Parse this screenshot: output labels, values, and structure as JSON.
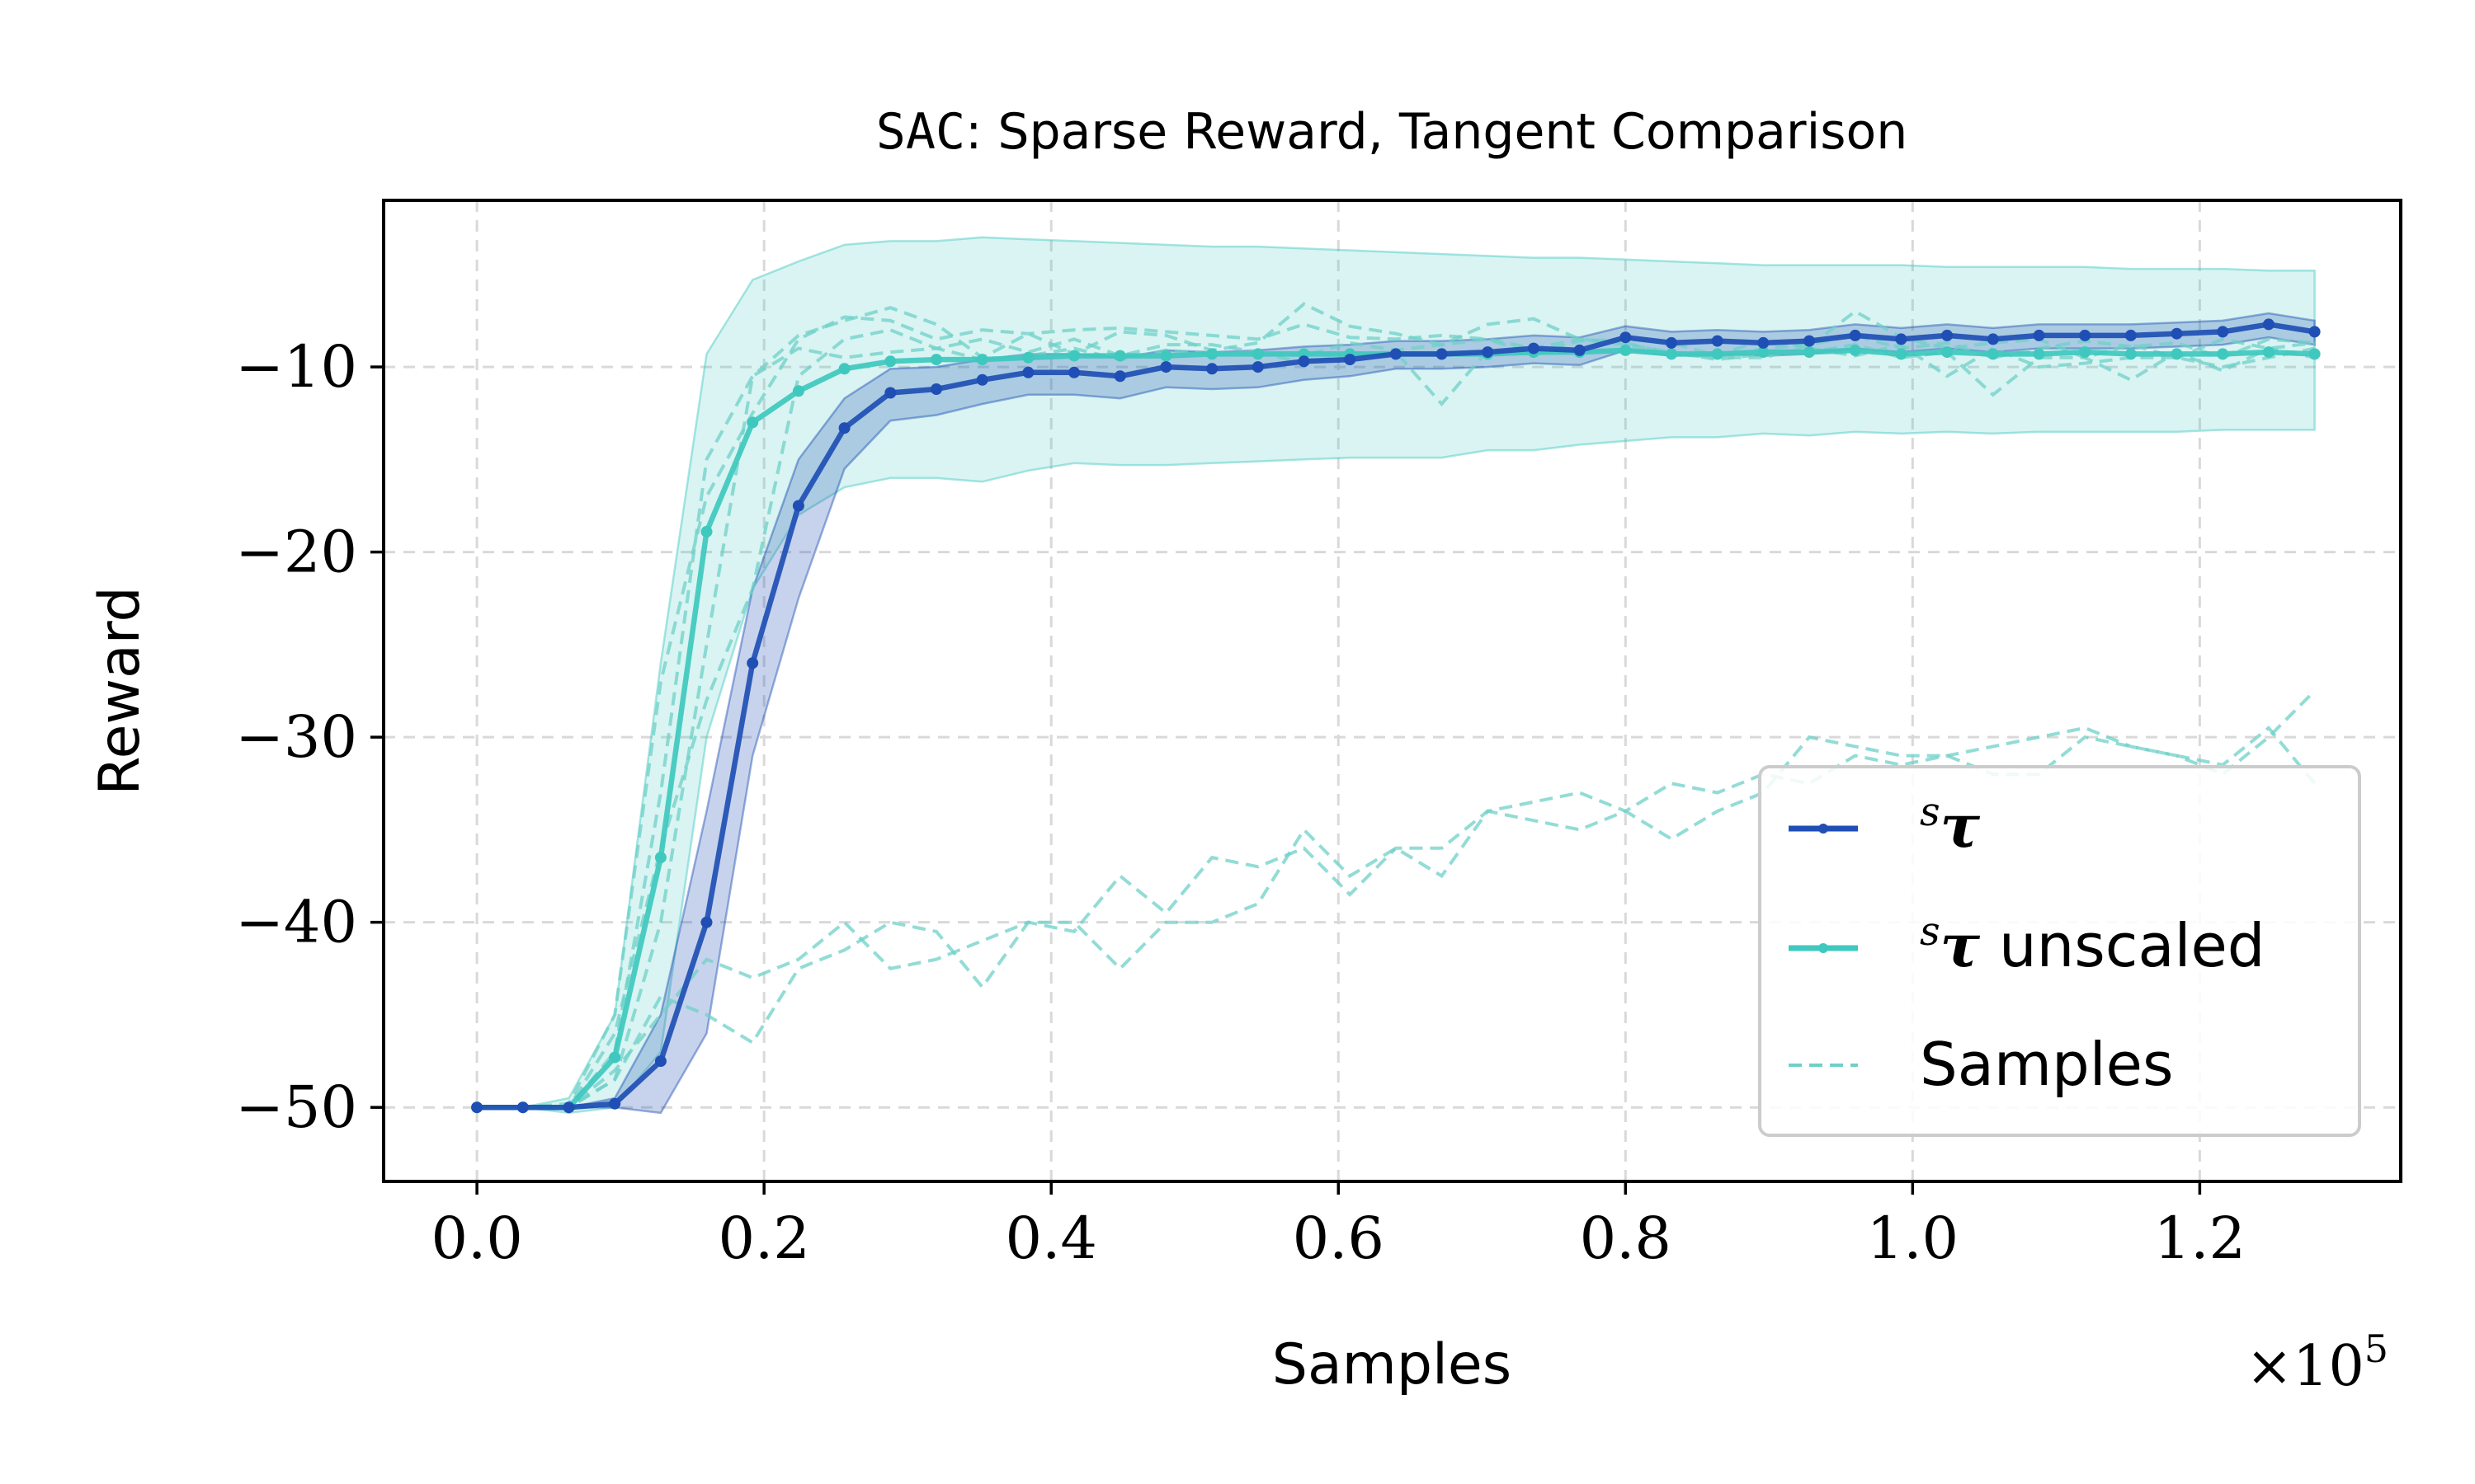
{
  "chart_data": {
    "type": "line",
    "title_prefix": "SAC",
    "title_rest": ": Sparse Reward, Tangent Comparison",
    "xlabel": "Samples",
    "ylabel": "Reward",
    "x_multiplier": "×10",
    "x_multiplier_exp": "5",
    "xlim": [
      -0.065,
      1.34
    ],
    "ylim": [
      -54,
      -1
    ],
    "xticks": [
      0.0,
      0.2,
      0.4,
      0.6,
      0.8,
      1.0,
      1.2
    ],
    "xtick_labels": [
      "0.0",
      "0.2",
      "0.4",
      "0.6",
      "0.8",
      "1.0",
      "1.2"
    ],
    "yticks": [
      -10,
      -20,
      -30,
      -40,
      -50
    ],
    "ytick_labels": [
      "−10",
      "−20",
      "−30",
      "−40",
      "−50"
    ],
    "grid": true,
    "legend_placement": "lower-right",
    "colors": {
      "scaled": "#1f4fb4",
      "unscaled": "#3fc8be",
      "samples": "#6fd0c8"
    },
    "x": [
      0.0,
      0.032,
      0.064,
      0.096,
      0.128,
      0.16,
      0.192,
      0.224,
      0.256,
      0.288,
      0.32,
      0.352,
      0.384,
      0.416,
      0.448,
      0.48,
      0.512,
      0.544,
      0.576,
      0.608,
      0.64,
      0.672,
      0.704,
      0.736,
      0.768,
      0.8,
      0.832,
      0.864,
      0.896,
      0.928,
      0.96,
      0.992,
      1.024,
      1.056,
      1.088,
      1.12,
      1.152,
      1.184,
      1.216,
      1.248,
      1.28
    ],
    "series": [
      {
        "name": "sτ",
        "label_sup": "s",
        "label_main": "τ",
        "label_suffix": "",
        "values": [
          -50,
          -50,
          -50,
          -49.8,
          -47.5,
          -40,
          -26,
          -17.5,
          -13.3,
          -11.4,
          -11.2,
          -10.7,
          -10.3,
          -10.3,
          -10.5,
          -10,
          -10.1,
          -10,
          -9.7,
          -9.6,
          -9.3,
          -9.3,
          -9.2,
          -9,
          -9.1,
          -8.4,
          -8.7,
          -8.6,
          -8.7,
          -8.6,
          -8.3,
          -8.5,
          -8.3,
          -8.5,
          -8.3,
          -8.3,
          -8.3,
          -8.2,
          -8.1,
          -7.7,
          -8.1
        ],
        "band_upper": [
          -50,
          -50,
          -50,
          -49.5,
          -45,
          -34,
          -22,
          -15,
          -11.7,
          -10.1,
          -10,
          -9.6,
          -9.3,
          -9.3,
          -9.5,
          -9.1,
          -9.2,
          -9.1,
          -8.9,
          -8.8,
          -8.6,
          -8.6,
          -8.5,
          -8.3,
          -8.4,
          -7.8,
          -8.1,
          -8,
          -8.1,
          -8,
          -7.7,
          -7.9,
          -7.7,
          -7.9,
          -7.7,
          -7.7,
          -7.7,
          -7.6,
          -7.5,
          -7.1,
          -7.5
        ],
        "band_lower": [
          -50,
          -50,
          -50,
          -50,
          -50.3,
          -46,
          -31,
          -22.5,
          -15.5,
          -12.9,
          -12.6,
          -12,
          -11.5,
          -11.5,
          -11.7,
          -11.1,
          -11.2,
          -11.1,
          -10.7,
          -10.5,
          -10.1,
          -10.1,
          -10,
          -9.8,
          -9.9,
          -9.1,
          -9.4,
          -9.3,
          -9.4,
          -9.3,
          -9,
          -9.2,
          -9,
          -9.2,
          -9,
          -9,
          -9,
          -8.9,
          -8.8,
          -8.4,
          -8.8
        ]
      },
      {
        "name": "sτ unscaled",
        "label_sup": "s",
        "label_main": "τ",
        "label_suffix": " unscaled",
        "values": [
          -50,
          -50,
          -50,
          -47.3,
          -36.5,
          -18.9,
          -13,
          -11.3,
          -10.1,
          -9.7,
          -9.6,
          -9.6,
          -9.5,
          -9.4,
          -9.4,
          -9.4,
          -9.3,
          -9.3,
          -9.3,
          -9.3,
          -9.3,
          -9.3,
          -9.3,
          -9.2,
          -9.2,
          -9.1,
          -9.3,
          -9.3,
          -9.2,
          -9.2,
          -9.1,
          -9.3,
          -9.2,
          -9.3,
          -9.3,
          -9.2,
          -9.3,
          -9.3,
          -9.3,
          -9.2,
          -9.3
        ],
        "band_upper": [
          -50,
          -50,
          -49.5,
          -45,
          -26,
          -9.3,
          -5.3,
          -4.3,
          -3.4,
          -3.2,
          -3.2,
          -3,
          -3.1,
          -3.2,
          -3.3,
          -3.4,
          -3.5,
          -3.5,
          -3.6,
          -3.7,
          -3.8,
          -3.9,
          -4,
          -4.1,
          -4.1,
          -4.2,
          -4.3,
          -4.4,
          -4.5,
          -4.5,
          -4.5,
          -4.5,
          -4.6,
          -4.6,
          -4.6,
          -4.6,
          -4.7,
          -4.7,
          -4.7,
          -4.8,
          -4.8
        ],
        "band_lower": [
          -50,
          -50,
          -50.3,
          -50,
          -47,
          -30,
          -22,
          -18,
          -16.5,
          -16,
          -16,
          -16.2,
          -15.6,
          -15.2,
          -15.3,
          -15.3,
          -15.2,
          -15.1,
          -15,
          -14.9,
          -14.9,
          -14.9,
          -14.5,
          -14.5,
          -14.2,
          -14,
          -13.8,
          -13.8,
          -13.6,
          -13.7,
          -13.5,
          -13.6,
          -13.5,
          -13.6,
          -13.5,
          -13.5,
          -13.5,
          -13.5,
          -13.4,
          -13.4,
          -13.4
        ]
      }
    ],
    "samples": {
      "name": "Samples",
      "runs": [
        [
          -50,
          -50,
          -49.8,
          -45,
          -27,
          -17,
          -12.5,
          -8.5,
          -7.3,
          -7.5,
          -8.5,
          -8,
          -8.2,
          -8,
          -7.9,
          -8.1,
          -8.3,
          -8.5,
          -7.7,
          -8.4,
          -8.5,
          -8.3,
          -8.5,
          -9,
          -8.5,
          -8.8,
          -9.2,
          -9.5,
          -9,
          -8.8,
          -8.3,
          -9,
          -8.7,
          -9.5,
          -9,
          -8.6,
          -8.9,
          -8.7,
          -9.5,
          -8.5,
          -8.7
        ],
        [
          -50,
          -50,
          -50,
          -47,
          -33,
          -15,
          -10.5,
          -8.3,
          -7.5,
          -6.8,
          -7.7,
          -9.5,
          -8.2,
          -9.3,
          -8.1,
          -8.3,
          -9.1,
          -8.7,
          -6.6,
          -7.8,
          -8.2,
          -8.8,
          -7.7,
          -7.4,
          -8.5,
          -8.7,
          -9.3,
          -9.5,
          -9.5,
          -8.9,
          -7,
          -8.4,
          -9,
          -8.7,
          -8.5,
          -9.5,
          -8.8,
          -9.5,
          -8.5,
          -9,
          -8.7
        ],
        [
          -50,
          -50,
          -50,
          -46,
          -36,
          -28,
          -22,
          -10.5,
          -8.5,
          -8,
          -9,
          -8.5,
          -9.2,
          -8.5,
          -9.4,
          -8.8,
          -8.8,
          -9.2,
          -9.4,
          -8.7,
          -9.1,
          -8.8,
          -8.5,
          -9.3,
          -8.6,
          -8.5,
          -8.7,
          -9.4,
          -8.5,
          -9,
          -9.4,
          -8.8,
          -10.5,
          -9,
          -10,
          -9.8,
          -9.5,
          -9.5,
          -10,
          -9.5,
          -9
        ],
        [
          -50,
          -50,
          -50,
          -48.5,
          -40,
          -25,
          -10.5,
          -9,
          -9.5,
          -9.2,
          -9,
          -9.6,
          -9.4,
          -9,
          -9.6,
          -9.1,
          -9.3,
          -9.2,
          -9.8,
          -9.3,
          -9.2,
          -12,
          -9.1,
          -9.3,
          -9.1,
          -9.2,
          -9.2,
          -9.6,
          -9.3,
          -9.2,
          -8.8,
          -9.5,
          -9.2,
          -11.5,
          -9.5,
          -9.5,
          -10.7,
          -9.2,
          -10.2,
          -9,
          -9.5
        ],
        [
          -50,
          -50,
          -50,
          -48,
          -45,
          -42,
          -43,
          -42,
          -40,
          -42.5,
          -42,
          -41,
          -40,
          -40.5,
          -37.5,
          -39.5,
          -36.5,
          -37,
          -36,
          -38.5,
          -36,
          -36,
          -34,
          -33.5,
          -33,
          -34,
          -32.5,
          -33,
          -32,
          -32.5,
          -31,
          -31.5,
          -31,
          -30.5,
          -30,
          -29.5,
          -30.5,
          -31,
          -32,
          -30,
          -27.5
        ],
        [
          -50,
          -50,
          -50,
          -48.5,
          -44,
          -45,
          -46.5,
          -42.5,
          -41.5,
          -40,
          -40.5,
          -43.5,
          -40,
          -40,
          -42.5,
          -40,
          -40,
          -39,
          -35,
          -37.5,
          -36,
          -37.5,
          -34,
          -34.5,
          -35,
          -34,
          -35.5,
          -34,
          -33,
          -30,
          -30.5,
          -31,
          -31,
          -32,
          -32,
          -30,
          -30.5,
          -31,
          -31.5,
          -29.5,
          -32.5
        ]
      ]
    }
  }
}
